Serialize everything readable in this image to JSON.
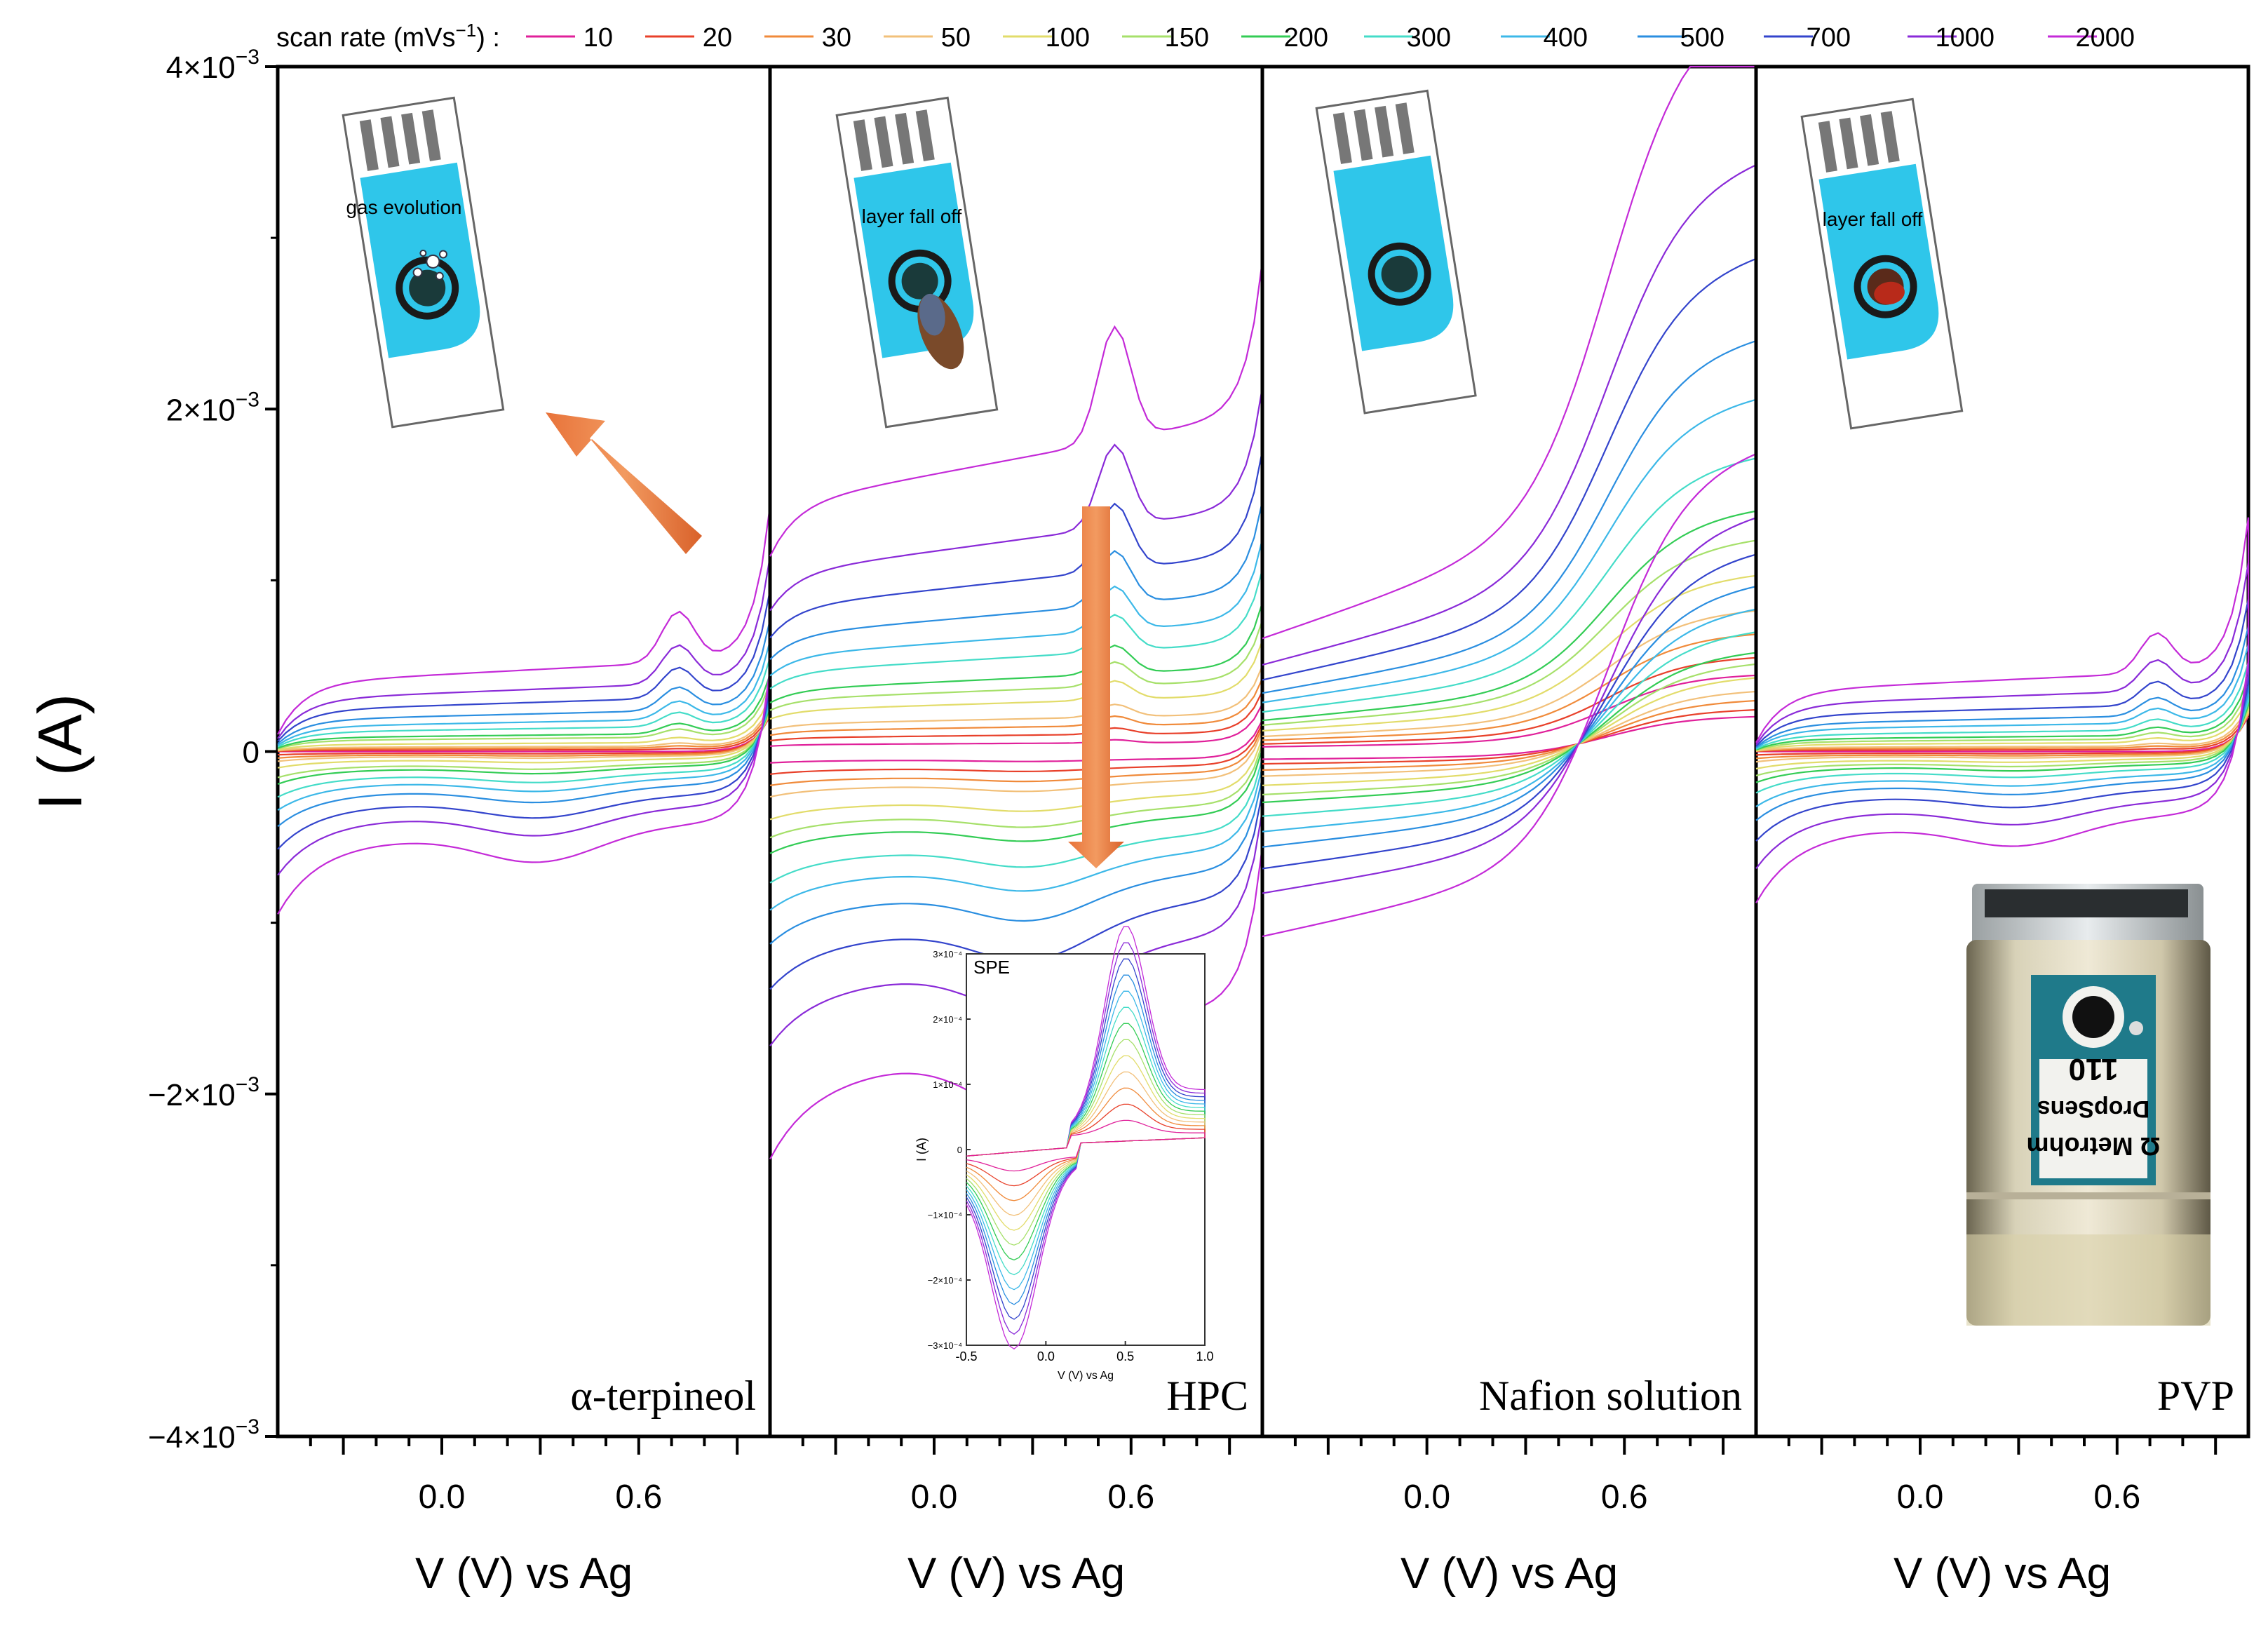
{
  "legend": {
    "label": "scan rate (mVs",
    "label_sup": "−1",
    "label_end": ") :",
    "entries": [
      {
        "name": "10",
        "color": "#e0209a"
      },
      {
        "name": "20",
        "color": "#e8402a"
      },
      {
        "name": "30",
        "color": "#f08a3a"
      },
      {
        "name": "50",
        "color": "#f2c07a"
      },
      {
        "name": "100",
        "color": "#e2dc6a"
      },
      {
        "name": "150",
        "color": "#a6e06a"
      },
      {
        "name": "200",
        "color": "#33cc55"
      },
      {
        "name": "300",
        "color": "#44dcc8"
      },
      {
        "name": "400",
        "color": "#3cb8e8"
      },
      {
        "name": "500",
        "color": "#2a8ee0"
      },
      {
        "name": "700",
        "color": "#3344cc"
      },
      {
        "name": "1000",
        "color": "#8a2ad8"
      },
      {
        "name": "2000",
        "color": "#c42ad8"
      }
    ]
  },
  "y_axis": {
    "title": "I (A)",
    "ticks": [
      {
        "base": "4×10",
        "exp": "−3",
        "value": 0.004
      },
      {
        "base": "2×10",
        "exp": "−3",
        "value": 0.002
      },
      {
        "base": "0",
        "exp": "",
        "value": 0
      },
      {
        "base": "−2×10",
        "exp": "−3",
        "value": -0.002
      },
      {
        "base": "−4×10",
        "exp": "−3",
        "value": -0.004
      }
    ]
  },
  "chart_data": {
    "type": "line",
    "ylabel": "I (A)",
    "ylim": [
      -0.004,
      0.004
    ],
    "xlim": [
      -0.5,
      1.0
    ],
    "x_ticks": [
      "0.0",
      "0.6"
    ],
    "xlabel": "V (V) vs Ag",
    "series_names": [
      "10",
      "20",
      "30",
      "50",
      "100",
      "150",
      "200",
      "300",
      "400",
      "500",
      "700",
      "1000",
      "2000"
    ],
    "panels": [
      {
        "label": "α-terpineol",
        "xlabel": "V (V) vs Ag",
        "scale_top_mA": [
          0.0,
          0.01,
          0.02,
          0.03,
          0.05,
          0.08,
          0.1,
          0.14,
          0.18,
          0.23,
          0.3,
          0.38,
          0.5
        ],
        "peak_V": 0.72,
        "peak_max_A": 0.00117,
        "end_max_A": 0.00111
      },
      {
        "label": "HPC",
        "xlabel": "V (V) vs Ag",
        "scale_top_mA": [
          0.05,
          0.1,
          0.15,
          0.2,
          0.3,
          0.38,
          0.45,
          0.58,
          0.7,
          0.85,
          1.05,
          1.3,
          1.8
        ],
        "peak_V": 0.55,
        "peak_max_A": 0.00265,
        "end_max_A": 0.00295
      },
      {
        "label": "Nafion solution",
        "xlabel": "V (V) vs Ag",
        "scale_top_mA": [
          0.05,
          0.08,
          0.12,
          0.16,
          0.22,
          0.28,
          0.33,
          0.42,
          0.52,
          0.62,
          0.76,
          0.92,
          1.2
        ],
        "peak_V": null,
        "peak_max_A": null,
        "end_max_A": 0.00285
      },
      {
        "label": "PVP",
        "xlabel": "V (V) vs Ag",
        "scale_top_mA": [
          0.0,
          0.01,
          0.02,
          0.03,
          0.05,
          0.07,
          0.09,
          0.12,
          0.16,
          0.2,
          0.26,
          0.34,
          0.44
        ],
        "peak_V": 0.72,
        "peak_max_A": 0.00092,
        "end_max_A": 0.00089
      }
    ],
    "inset": {
      "title": "SPE",
      "xlabel": "V (V) vs Ag",
      "ylabel": "I (A)",
      "x_ticks": [
        "-0.5",
        "0.0",
        "0.5",
        "1.0"
      ],
      "y_ticks": [
        "3×10⁻⁴",
        "2×10⁻⁴",
        "1×10⁻⁴",
        "0",
        "−1×10⁻⁴",
        "−2×10⁻⁴",
        "−3×10⁻⁴"
      ],
      "xlim": [
        -0.5,
        1.0
      ],
      "ylim": [
        -0.0003,
        0.0003
      ],
      "peak_anodic_A": 0.00026,
      "peak_cathodic_A": -0.00025
    }
  },
  "annotations": {
    "terpineol_note": "gas evolution",
    "hpc_note": "layer fall off",
    "pvp_note": "layer fall off",
    "photo_text_line1": "Ω Metrohm",
    "photo_text_line2": "DropSens",
    "photo_text_line3": "110"
  }
}
